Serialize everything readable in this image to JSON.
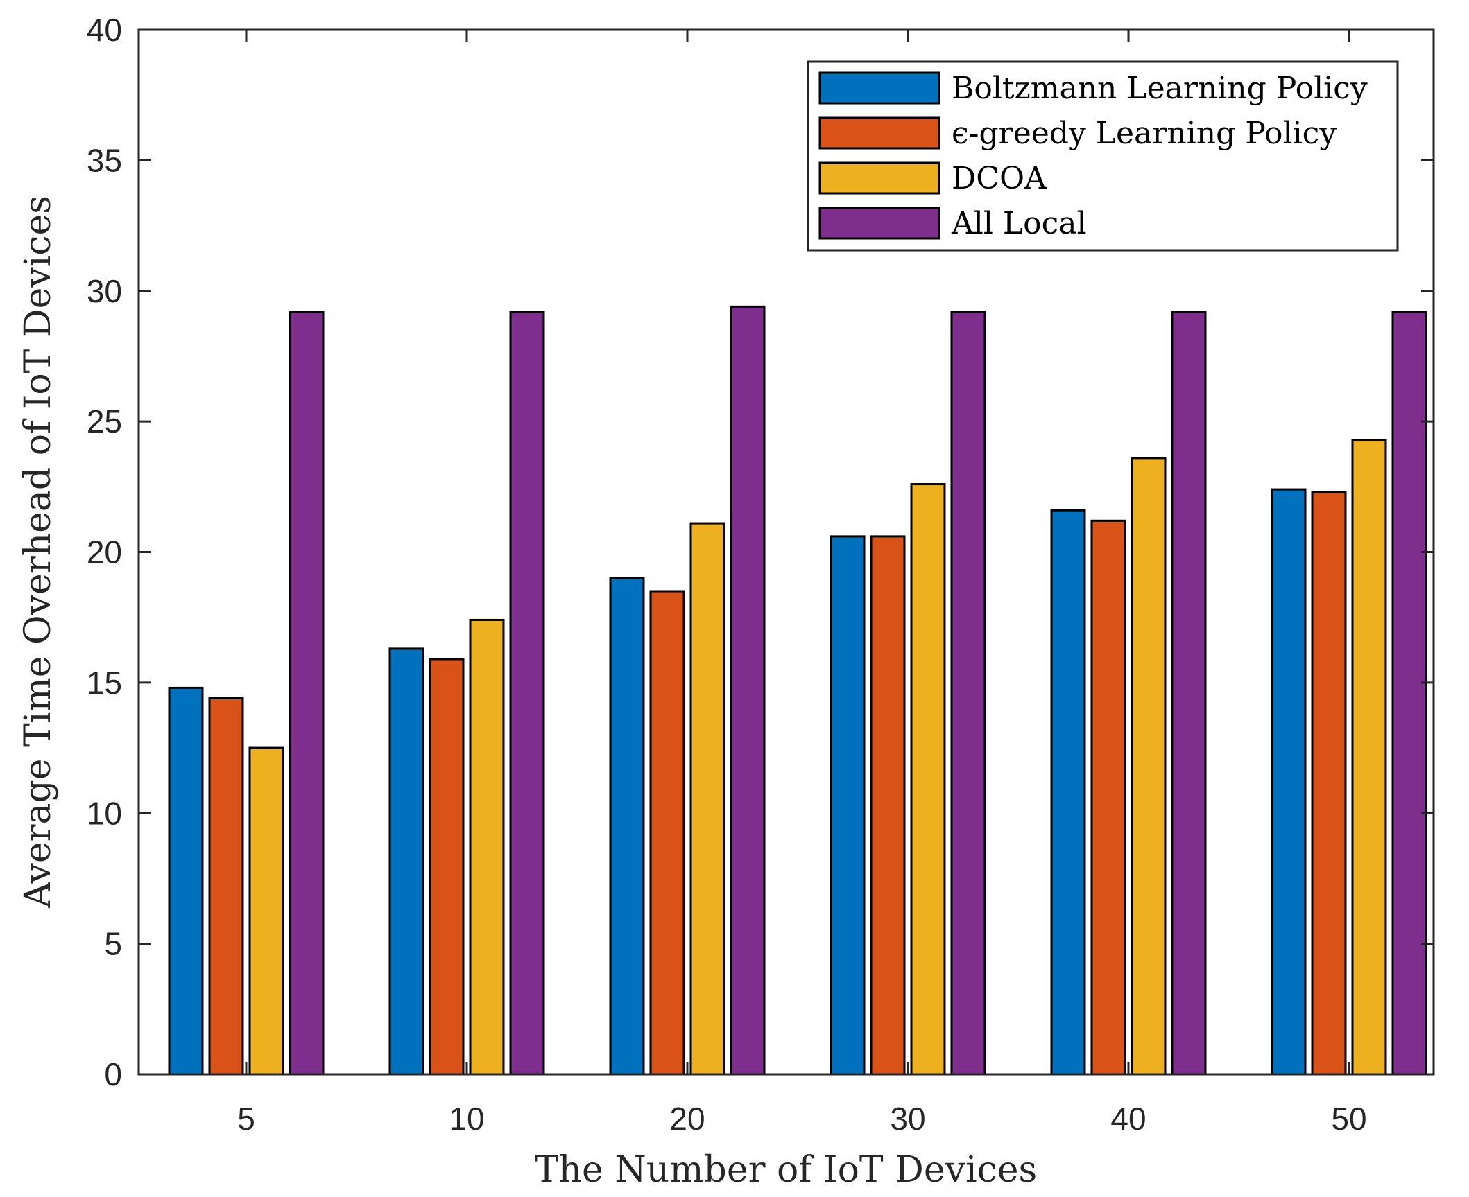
{
  "chart_data": {
    "type": "bar",
    "title": "",
    "xlabel": "The Number of IoT Devices",
    "ylabel": "Average Time Overhead of IoT Devices",
    "ylim": [
      0,
      40
    ],
    "yticks": [
      0,
      5,
      10,
      15,
      20,
      25,
      30,
      35,
      40
    ],
    "categories": [
      "5",
      "10",
      "20",
      "30",
      "40",
      "50"
    ],
    "legend_position": "top-right",
    "series": [
      {
        "name": "Boltzmann Learning Policy",
        "color": "#0072BD",
        "values": [
          14.8,
          16.3,
          19.0,
          20.6,
          21.6,
          22.4
        ]
      },
      {
        "name": "ϵ-greedy Learning Policy",
        "color": "#D95319",
        "values": [
          14.4,
          15.9,
          18.5,
          20.6,
          21.2,
          22.3
        ]
      },
      {
        "name": "DCOA",
        "color": "#EDB120",
        "values": [
          12.5,
          17.4,
          21.1,
          22.6,
          23.6,
          24.3
        ]
      },
      {
        "name": "All Local",
        "color": "#7E2F8E",
        "values": [
          29.2,
          29.2,
          29.4,
          29.2,
          29.2,
          29.2
        ]
      }
    ]
  }
}
